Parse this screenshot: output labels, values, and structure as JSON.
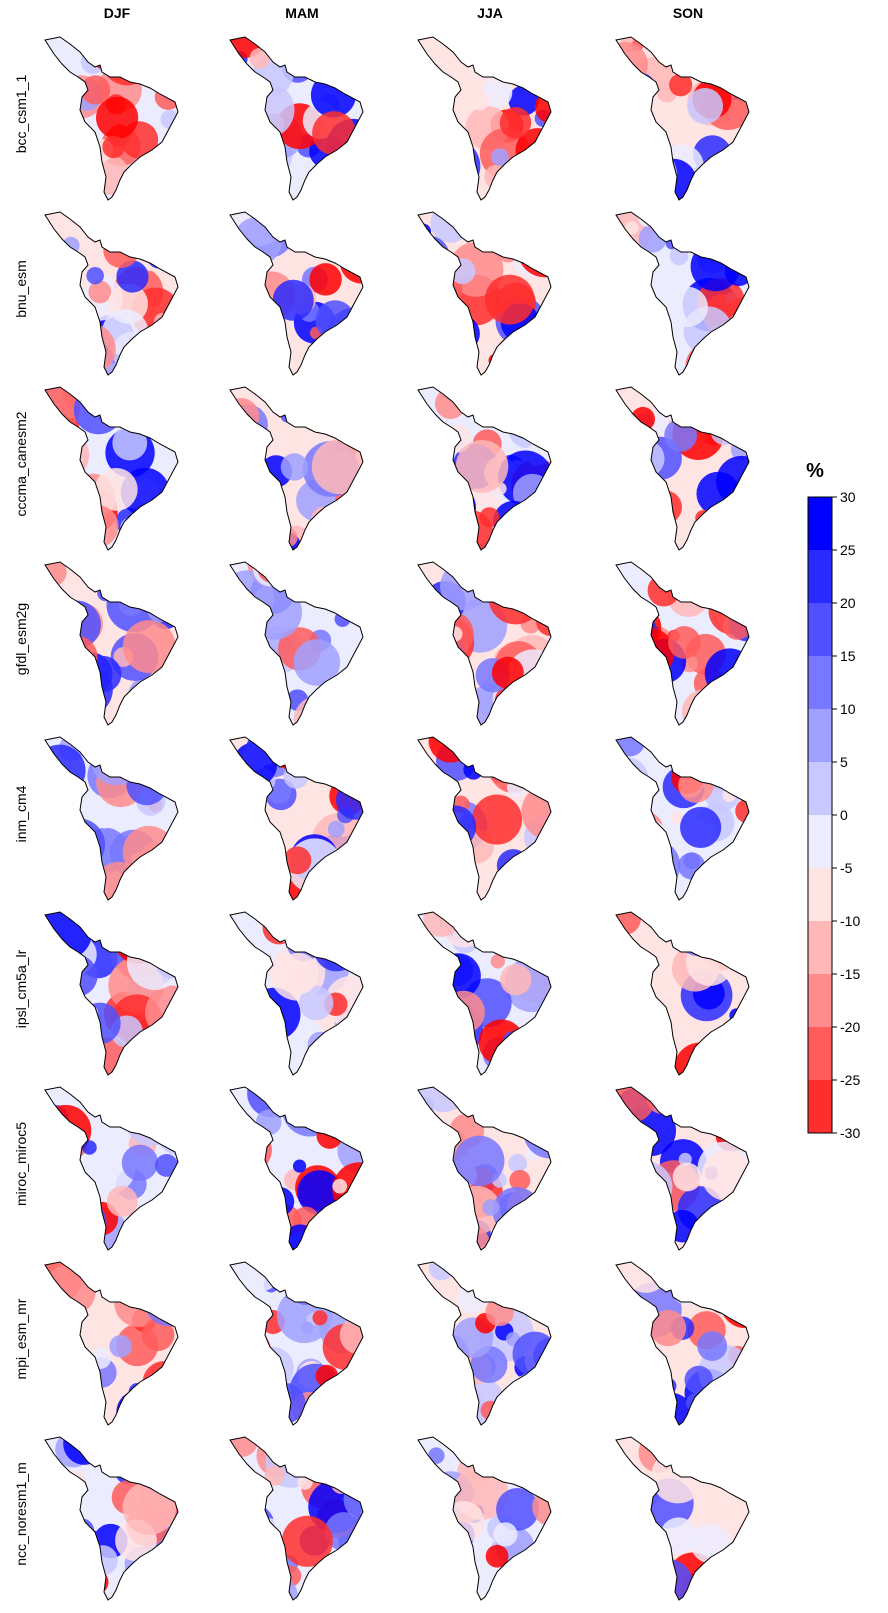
{
  "columns": [
    "DJF",
    "MAM",
    "JJA",
    "SON"
  ],
  "rows": [
    "bcc_csm1_1",
    "bnu_esm",
    "cccma_canesm2",
    "gfdl_esm2g",
    "inm_cm4",
    "ipsl_cm5a_lr",
    "miroc_miroc5",
    "mpi_esm_mr",
    "ncc_noresm1_m"
  ],
  "legend": {
    "title": "%",
    "ticks": [
      30,
      25,
      20,
      15,
      10,
      5,
      0,
      -5,
      -10,
      -15,
      -20,
      -25,
      -30
    ],
    "colors": [
      "#0000ff",
      "#2a2aff",
      "#5050ff",
      "#7878ff",
      "#a0a0ff",
      "#c8c8ff",
      "#ececff",
      "#ffe4e4",
      "#ffb8b8",
      "#ff8c8c",
      "#ff5c5c",
      "#ff2e2e",
      "#ff0000"
    ]
  }
}
